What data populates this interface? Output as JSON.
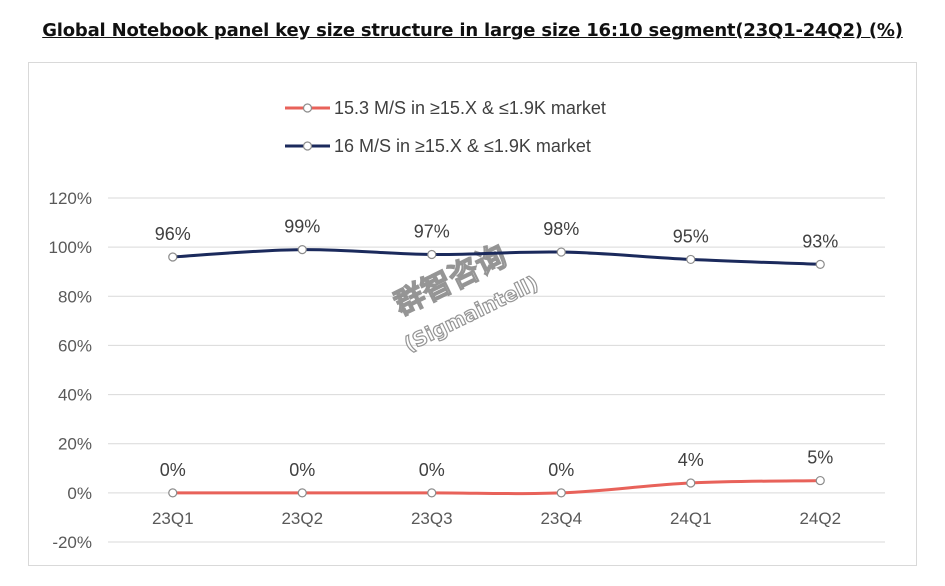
{
  "title": "Global Notebook panel  key size structure in large size 16:10 segment(23Q1-24Q2) (%)",
  "watermark": {
    "line1": "群智咨询",
    "line2": "(Sigmaintell)"
  },
  "chart_data": {
    "type": "line",
    "title": "Global Notebook panel  key size structure in large size 16:10 segment(23Q1-24Q2) (%)",
    "categories": [
      "23Q1",
      "23Q2",
      "23Q3",
      "23Q4",
      "24Q1",
      "24Q2"
    ],
    "series": [
      {
        "name": "15.3 M/S in ≥15.X & ≤1.9K market",
        "color": "#e8625a",
        "values": [
          0,
          0,
          0,
          0,
          4,
          5
        ],
        "labels": [
          "0%",
          "0%",
          "0%",
          "0%",
          "4%",
          "5%"
        ]
      },
      {
        "name": "16 M/S in ≥15.X & ≤1.9K market",
        "color": "#1b2a5c",
        "values": [
          96,
          99,
          97,
          98,
          95,
          93
        ],
        "labels": [
          "96%",
          "99%",
          "97%",
          "98%",
          "95%",
          "93%"
        ]
      }
    ],
    "yticks": [
      "-20%",
      "0%",
      "20%",
      "40%",
      "60%",
      "80%",
      "100%",
      "120%"
    ],
    "ylim": [
      -20,
      120
    ],
    "grid": true,
    "legend_position": "top"
  }
}
